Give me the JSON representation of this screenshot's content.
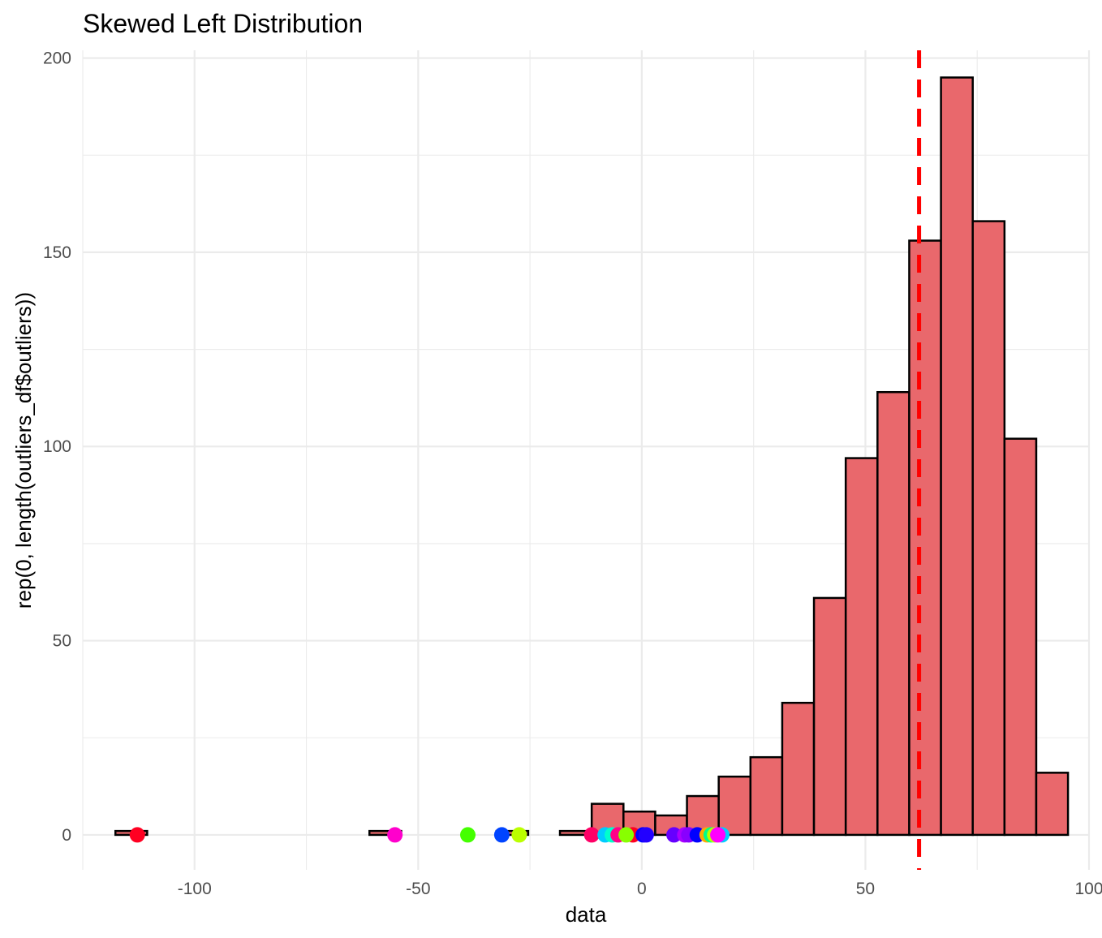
{
  "chart_data": {
    "type": "bar",
    "title": "Skewed Left Distribution",
    "xlabel": "data",
    "ylabel": "rep(0, length(outliers_df$outliers))",
    "xlim": [
      -125,
      100
    ],
    "ylim": [
      -9,
      202
    ],
    "x_ticks": [
      "-100",
      "-50",
      "0",
      "50",
      "100"
    ],
    "x_tick_values": [
      -100,
      -50,
      0,
      50,
      100
    ],
    "y_ticks": [
      "0",
      "50",
      "100",
      "150",
      "200"
    ],
    "y_tick_values": [
      0,
      50,
      100,
      150,
      200
    ],
    "grid": true,
    "bar_fill": "#e9686c",
    "bar_outline": "#000000",
    "bin_width": 7.1,
    "bins": [
      {
        "x0": -117.7,
        "count": 1
      },
      {
        "x0": -110.6,
        "count": 0
      },
      {
        "x0": -103.5,
        "count": 0
      },
      {
        "x0": -96.4,
        "count": 0
      },
      {
        "x0": -89.3,
        "count": 0
      },
      {
        "x0": -82.2,
        "count": 0
      },
      {
        "x0": -75.1,
        "count": 0
      },
      {
        "x0": -68.0,
        "count": 0
      },
      {
        "x0": -60.9,
        "count": 1
      },
      {
        "x0": -53.8,
        "count": 0
      },
      {
        "x0": -46.7,
        "count": 0
      },
      {
        "x0": -39.6,
        "count": 0
      },
      {
        "x0": -32.5,
        "count": 1
      },
      {
        "x0": -25.4,
        "count": 0
      },
      {
        "x0": -18.3,
        "count": 1
      },
      {
        "x0": -11.2,
        "count": 8
      },
      {
        "x0": -4.1,
        "count": 6
      },
      {
        "x0": 3.0,
        "count": 5
      },
      {
        "x0": 10.1,
        "count": 10
      },
      {
        "x0": 17.2,
        "count": 15
      },
      {
        "x0": 24.3,
        "count": 20
      },
      {
        "x0": 31.4,
        "count": 34
      },
      {
        "x0": 38.5,
        "count": 61
      },
      {
        "x0": 45.6,
        "count": 97
      },
      {
        "x0": 52.7,
        "count": 114
      },
      {
        "x0": 59.8,
        "count": 153
      },
      {
        "x0": 66.9,
        "count": 195
      },
      {
        "x0": 74.0,
        "count": 158
      },
      {
        "x0": 81.1,
        "count": 102
      },
      {
        "x0": 88.2,
        "count": 16
      }
    ],
    "reference_line": {
      "x": 62,
      "style": "dashed",
      "color": "#ff0000"
    },
    "outlier_points": [
      {
        "x": -112.8,
        "y": 0,
        "color": "#ff0022"
      },
      {
        "x": -55.2,
        "y": 0,
        "color": "#ff00cc"
      },
      {
        "x": -38.9,
        "y": 0,
        "color": "#44ff00"
      },
      {
        "x": -31.3,
        "y": 0,
        "color": "#0044ff"
      },
      {
        "x": -27.4,
        "y": 0,
        "color": "#bbff00"
      },
      {
        "x": -11.2,
        "y": 0,
        "color": "#ff0066"
      },
      {
        "x": -8.2,
        "y": 0,
        "color": "#00ccff"
      },
      {
        "x": -6.6,
        "y": 0,
        "color": "#00ffcc"
      },
      {
        "x": -5.3,
        "y": 0,
        "color": "#ff0088"
      },
      {
        "x": -2.0,
        "y": 0,
        "color": "#ff0022"
      },
      {
        "x": -3.5,
        "y": 0,
        "color": "#88ff00"
      },
      {
        "x": 0.3,
        "y": 0,
        "color": "#0000ff"
      },
      {
        "x": 1.0,
        "y": 0,
        "color": "#2200ff"
      },
      {
        "x": 7.2,
        "y": 0,
        "color": "#6600ff"
      },
      {
        "x": 9.6,
        "y": 0,
        "color": "#aa00ff"
      },
      {
        "x": 10.5,
        "y": 0,
        "color": "#8800ff"
      },
      {
        "x": 12.4,
        "y": 0,
        "color": "#0000ff"
      },
      {
        "x": 14.6,
        "y": 0,
        "color": "#ffaa00"
      },
      {
        "x": 15.5,
        "y": 0,
        "color": "#00ff88"
      },
      {
        "x": 16.3,
        "y": 0,
        "color": "#bbff00"
      },
      {
        "x": 17.9,
        "y": 0,
        "color": "#00ccff"
      },
      {
        "x": 17.0,
        "y": 0,
        "color": "#ff00ff"
      }
    ]
  }
}
